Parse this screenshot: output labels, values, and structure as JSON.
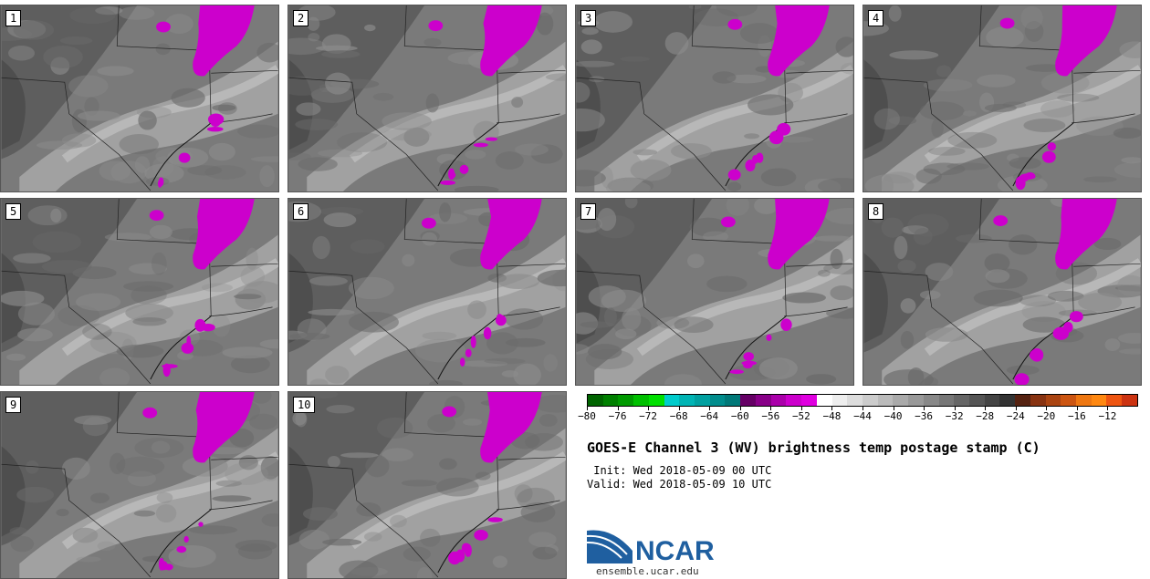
{
  "panels": [
    {
      "label": "1"
    },
    {
      "label": "2"
    },
    {
      "label": "3"
    },
    {
      "label": "4"
    },
    {
      "label": "5"
    },
    {
      "label": "6"
    },
    {
      "label": "7"
    },
    {
      "label": "8"
    },
    {
      "label": "9"
    },
    {
      "label": "10"
    }
  ],
  "colorbar": {
    "tick_labels": [
      "−80",
      "−76",
      "−72",
      "−68",
      "−64",
      "−60",
      "−56",
      "−52",
      "−48",
      "−44",
      "−40",
      "−36",
      "−32",
      "−28",
      "−24",
      "−20",
      "−16",
      "−12"
    ],
    "colors": [
      "#006400",
      "#008000",
      "#009a00",
      "#00c000",
      "#00e000",
      "#00cccc",
      "#00b4b4",
      "#00a0a0",
      "#008c8c",
      "#007878",
      "#660066",
      "#880088",
      "#aa00aa",
      "#cc00cc",
      "#e000e0",
      "#ffffff",
      "#eeeeee",
      "#dddddd",
      "#cccccc",
      "#bbbbbb",
      "#aaaaaa",
      "#999999",
      "#888888",
      "#777777",
      "#666666",
      "#555555",
      "#444444",
      "#333333",
      "#552211",
      "#883311",
      "#aa4411",
      "#cc5511",
      "#ee7711",
      "#ff8811",
      "#ee5511",
      "#cc3311"
    ]
  },
  "title": "GOES-E Channel 3 (WV) brightness temp postage stamp (C)",
  "init_line": " Init: Wed 2018-05-09 00 UTC",
  "valid_line": "Valid: Wed 2018-05-09 10 UTC",
  "logo_text": "NCAR",
  "logo_url": "ensemble.ucar.edu",
  "colors": {
    "magenta": "#cc00cc",
    "brand": "#1f5fa0"
  }
}
